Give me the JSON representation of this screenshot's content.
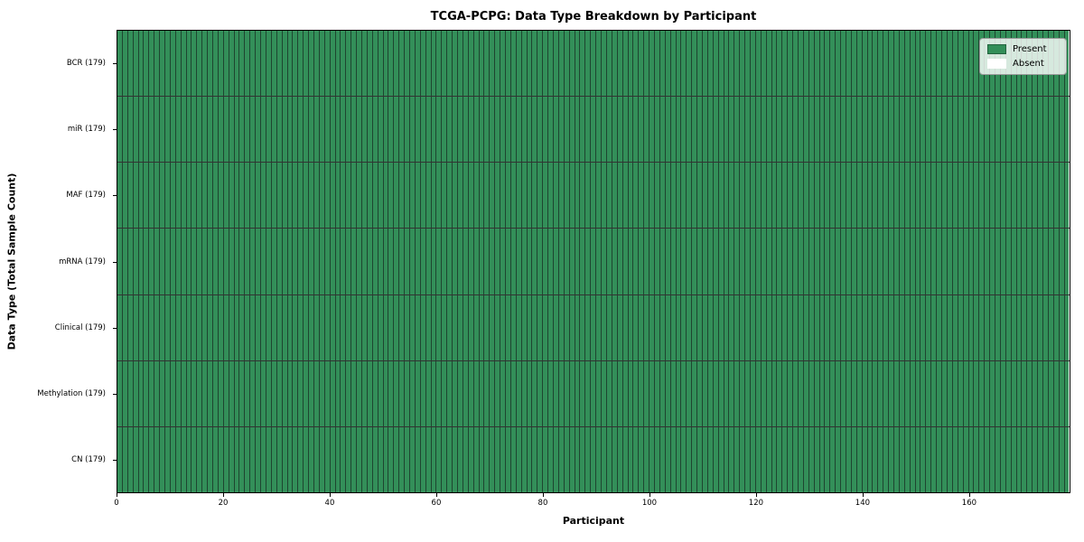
{
  "chart_data": {
    "type": "heatmap",
    "title": "TCGA-PCPG: Data Type Breakdown by Participant",
    "xlabel": "Participant",
    "ylabel": "Data Type (Total Sample Count)",
    "rows": [
      {
        "label": "BCR (179)",
        "present_count": 179,
        "total": 179,
        "absent_indices": []
      },
      {
        "label": "miR (179)",
        "present_count": 179,
        "total": 179,
        "absent_indices": []
      },
      {
        "label": "MAF (179)",
        "present_count": 179,
        "total": 179,
        "absent_indices": []
      },
      {
        "label": "mRNA (179)",
        "present_count": 179,
        "total": 179,
        "absent_indices": []
      },
      {
        "label": "Clinical (179)",
        "present_count": 179,
        "total": 179,
        "absent_indices": []
      },
      {
        "label": "Methylation (179)",
        "present_count": 179,
        "total": 179,
        "absent_indices": []
      },
      {
        "label": "CN (179)",
        "present_count": 179,
        "total": 179,
        "absent_indices": []
      }
    ],
    "n_participants": 179,
    "x_range": [
      0,
      179
    ],
    "x_ticks": [
      0,
      20,
      40,
      60,
      80,
      100,
      120,
      140,
      160
    ],
    "legend": {
      "position": "upper right",
      "entries": [
        {
          "label": "Present",
          "color": "#338F59"
        },
        {
          "label": "Absent",
          "color": "#FFFFFF"
        }
      ]
    },
    "colors": {
      "present": "#338F59",
      "absent": "#FFFFFF",
      "cell_edge": "#1E4530",
      "row_separator": "#000000",
      "plot_border": "#000000"
    },
    "grid": "cell borders only",
    "background": "#FFFFFF"
  }
}
